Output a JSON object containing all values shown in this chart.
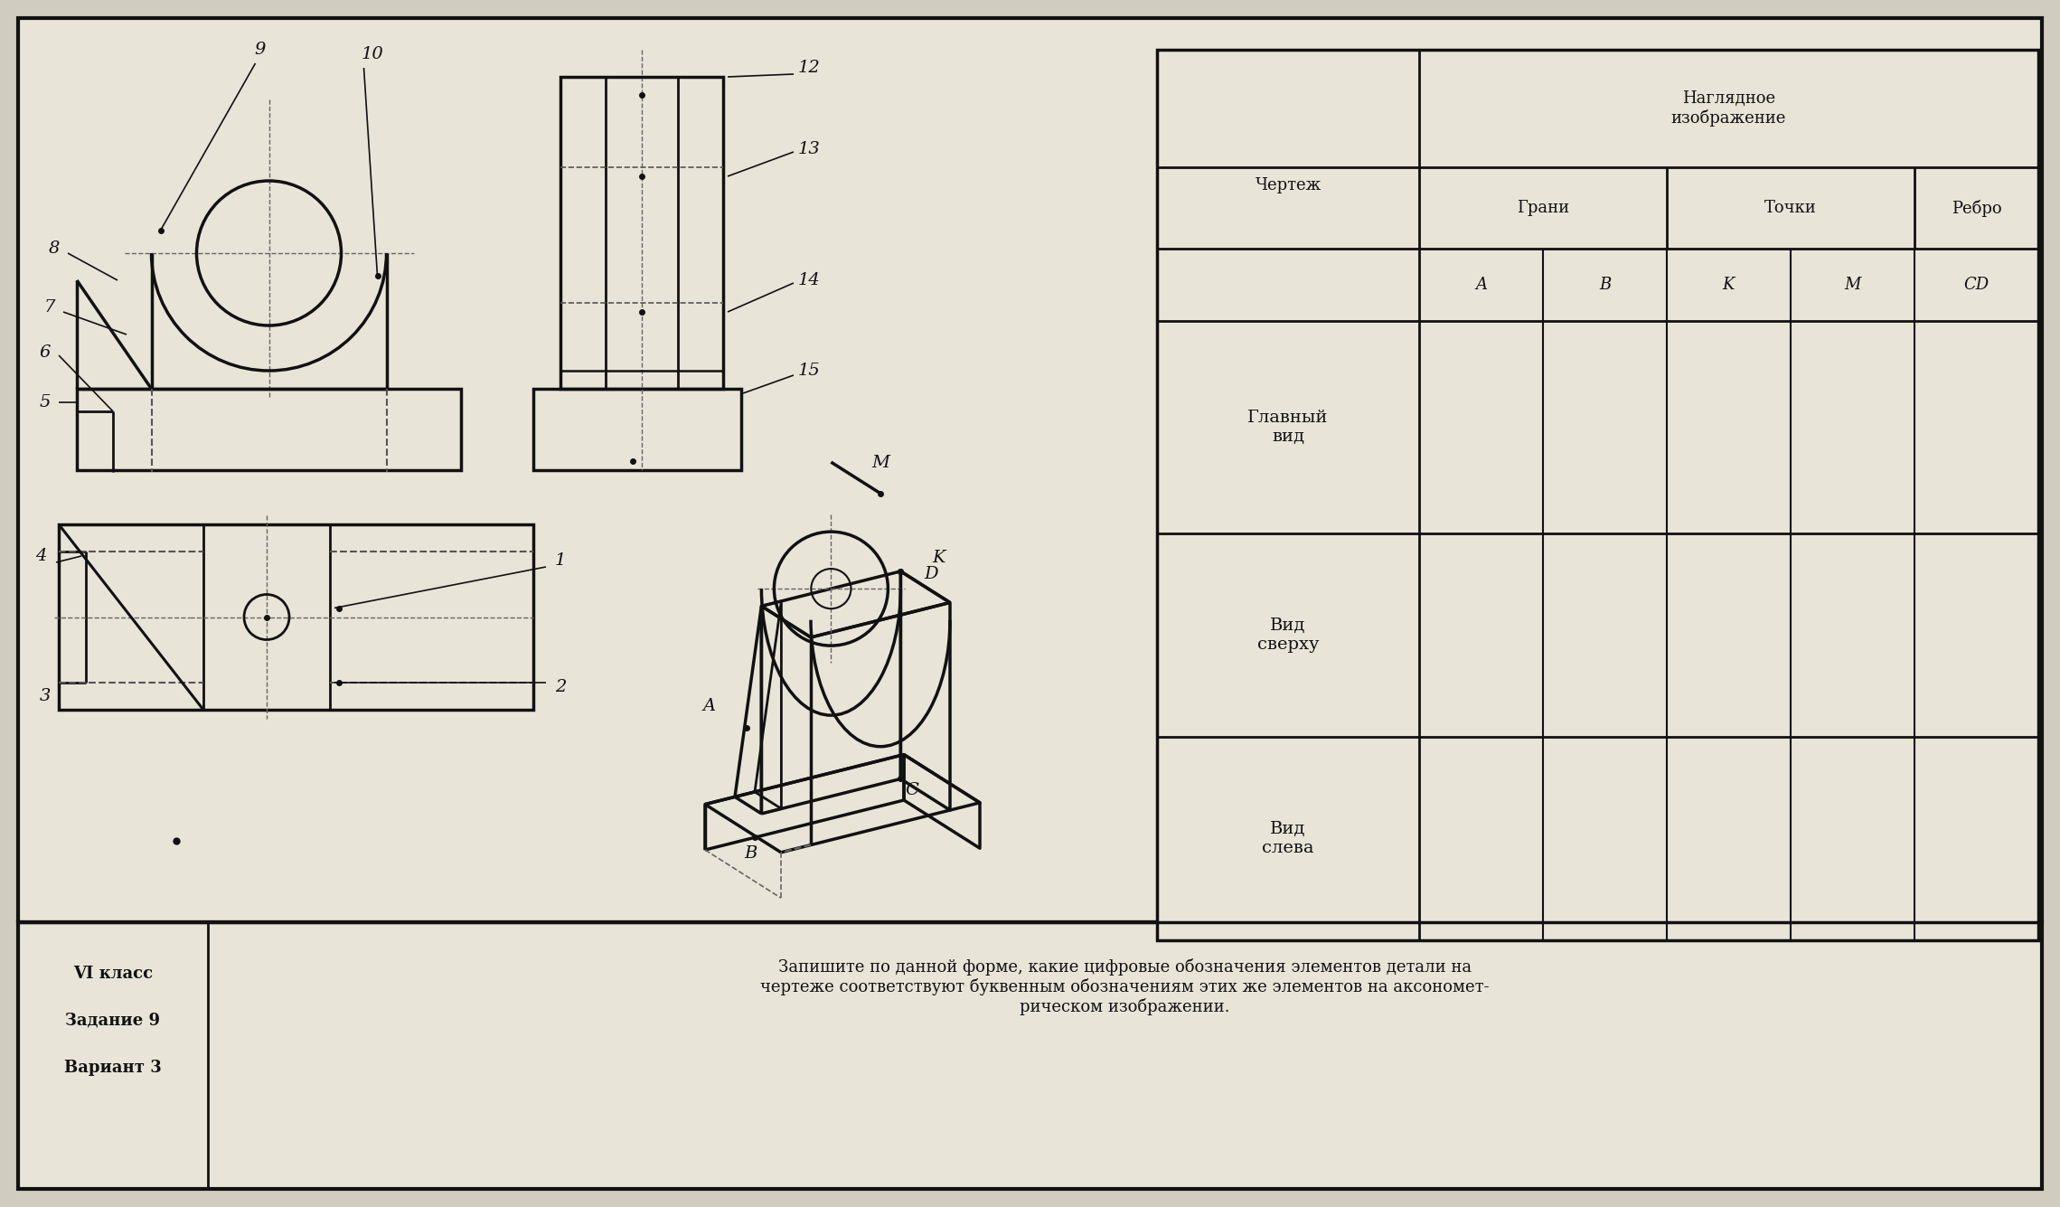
{
  "bg_color": "#d0ccc0",
  "paper_color": "#e8e4d8",
  "line_color": "#111111",
  "footer_left1": "VI класс",
  "footer_left2": "Задание 9",
  "footer_left3": "Вариант 3",
  "footer_text": "Запишите по данной форме, какие цифровые обозначения элементов детали на\nчертеже соответствуют буквенным обозначениям этих же элементов на аксономет-\nрическом изображении.",
  "table_naglyad": "Наглядное\nизображение",
  "table_chertezh": "Чертеж",
  "table_grani": "Грани",
  "table_tochki": "Точки",
  "table_rebro": "Ребро",
  "table_sub": [
    "A",
    "B",
    "K",
    "M",
    "CD"
  ],
  "table_rows": [
    "Главный\nвид",
    "Вид\nсверху",
    "Вид\nслева"
  ]
}
